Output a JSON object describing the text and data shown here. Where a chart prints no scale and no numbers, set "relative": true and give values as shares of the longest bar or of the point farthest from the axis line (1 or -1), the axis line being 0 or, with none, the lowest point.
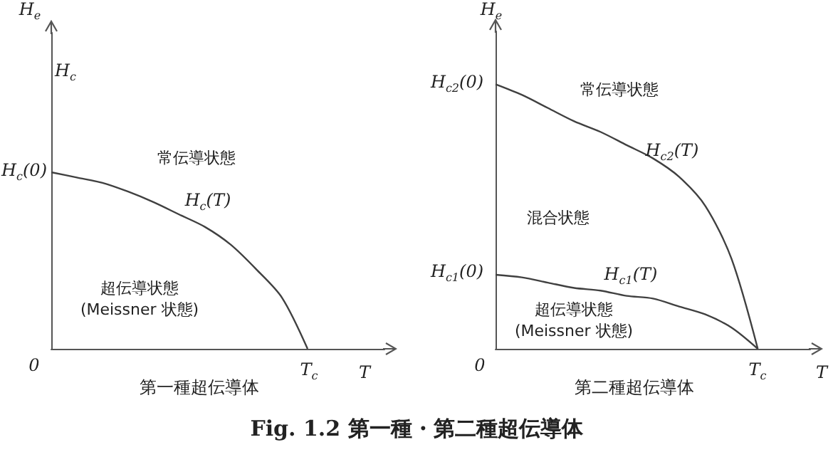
{
  "chart_data": [
    {
      "type": "line",
      "title": "第一種超伝導体",
      "xlabel": "T",
      "ylabel": "H$_{e}$",
      "relative": true,
      "categories": [
        null,
        null,
        null,
        null,
        null,
        null,
        null,
        null,
        null,
        null,
        null,
        null,
        null,
        null
      ],
      "series": [
        {
          "color": "#404040",
          "values": [
            1,
            0.97,
            0.94,
            0.89,
            0.83,
            0.76,
            0.69,
            0.59,
            0.45,
            0.29,
            0,
            null,
            null,
            null
          ]
        }
      ],
      "marker": "none",
      "line_style": "solid",
      "annotations": [
        "H$_{c}$",
        "常伝導状態",
        "H$_{c}$(T)",
        "超伝導状態\n(Meissner 状態)",
        "0",
        "T$_{c}$",
        "H$_{c}$(0)"
      ]
    },
    {
      "type": "line",
      "title": "第二種超伝導体",
      "xlabel": "T",
      "ylabel": "H$_{e}$",
      "relative": true,
      "categories": [
        null,
        null,
        null,
        null,
        null,
        null,
        null,
        null,
        null,
        null,
        null,
        null,
        null
      ],
      "series": [
        {
          "color": "#404040",
          "values": [
            1,
            0.96,
            0.91,
            0.86,
            0.82,
            0.77,
            0.72,
            0.65,
            0.54,
            0.34,
            0,
            null,
            null
          ]
        },
        {
          "color": "#404040",
          "values": [
            0.28,
            0.27,
            0.25,
            0.23,
            0.22,
            0.2,
            0.19,
            0.16,
            0.13,
            0.08,
            0,
            null,
            null
          ]
        }
      ],
      "marker": "none",
      "line_style": "solid",
      "annotations": [
        "常伝導状態",
        "H$_{c2}$(T)",
        "混合状態",
        "H$_{c1}$(T)",
        "超伝導状態\n(Meissner 状態)",
        "0",
        "T$_{c}$",
        "H$_{c2}$(0)",
        "H$_{c1}$(0)",
        "Fig. 1.2  第一種・第二種超伝導体"
      ]
    }
  ]
}
